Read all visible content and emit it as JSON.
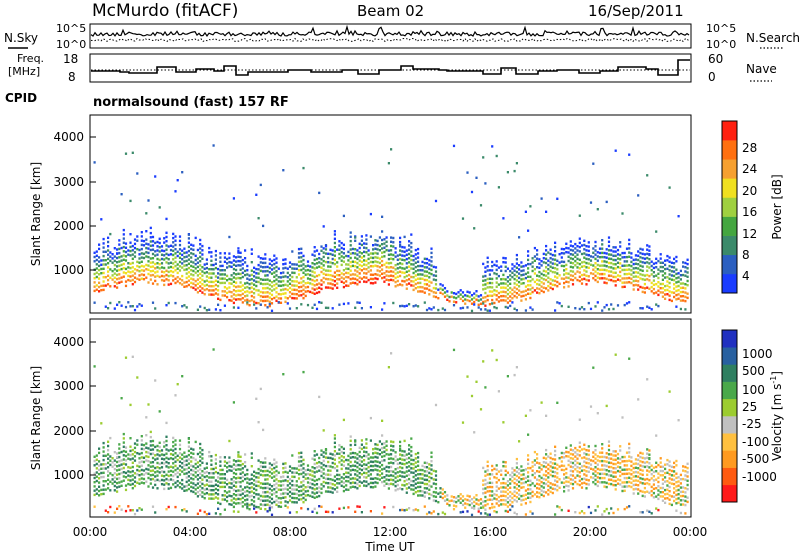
{
  "header": {
    "station": "McMurdo (fitACF)",
    "beam": "Beam 02",
    "date": "16/Sep/2011"
  },
  "noise_panel": {
    "left_label": "N.Sky",
    "right_label": "N.Search",
    "left_ticks": [
      "10^5",
      "10^0"
    ],
    "right_ticks": [
      "10^5",
      "10^0"
    ]
  },
  "freq_panel": {
    "left_label_line1": "Freq.",
    "left_label_line2": "[MHz]",
    "right_label": "Nave",
    "left_ticks": [
      "18",
      "8"
    ],
    "right_ticks": [
      "60",
      "0"
    ]
  },
  "cpid": {
    "label": "CPID",
    "text": "normalsound (fast) 157 RF"
  },
  "colors": {
    "power": [
      "#1a3cff",
      "#2b5fc0",
      "#3b8a6a",
      "#44a640",
      "#9fd040",
      "#f0e020",
      "#f6a030",
      "#ff7010",
      "#ff2010"
    ],
    "velocity": [
      "#ff1a1a",
      "#ff5a10",
      "#ff9a20",
      "#ffc040",
      "#c0c0c0",
      "#9ccc30",
      "#4aa84a",
      "#2f7f60",
      "#2860a0",
      "#2030c0"
    ]
  },
  "chart_data": [
    {
      "type": "heatmap",
      "name": "power",
      "ylabel": "Slant Range [km]",
      "yticks": [
        "1000",
        "2000",
        "3000",
        "4000"
      ],
      "ylim": [
        200,
        4600
      ],
      "xlim": [
        0,
        24
      ],
      "colorbar_label": "Power [dB]",
      "colorbar_ticks": [
        "4",
        "8",
        "12",
        "16",
        "20",
        "24",
        "28"
      ],
      "colorbar_range": [
        0,
        32
      ]
    },
    {
      "type": "heatmap",
      "name": "velocity",
      "xlabel": "Time UT",
      "ylabel": "Slant Range [km]",
      "yticks": [
        "1000",
        "2000",
        "3000",
        "4000"
      ],
      "ylim": [
        200,
        4600
      ],
      "xlim": [
        0,
        24
      ],
      "xticks": [
        "00:00",
        "04:00",
        "08:00",
        "12:00",
        "16:00",
        "20:00",
        "00:00"
      ],
      "colorbar_label_main": "Velocity [m s",
      "colorbar_label_exp": "-1",
      "colorbar_label_end": "]",
      "colorbar_ticks": [
        "1000",
        "500",
        "100",
        "25",
        "-25",
        "-100",
        "-500",
        "-1000"
      ]
    }
  ]
}
